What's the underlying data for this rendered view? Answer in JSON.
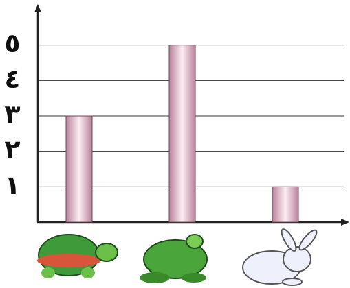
{
  "chart_data": {
    "type": "bar",
    "categories": [
      null,
      null,
      null
    ],
    "values": [
      3,
      5,
      1
    ],
    "color": "#b9829b",
    "ylim": [
      0,
      6
    ],
    "yticks": [
      {
        "value": 1,
        "label": "١"
      },
      {
        "value": 2,
        "label": "٢"
      },
      {
        "value": 3,
        "label": "٣"
      },
      {
        "value": 4,
        "label": "٤"
      },
      {
        "value": 5,
        "label": "٥"
      }
    ],
    "grid": true
  }
}
